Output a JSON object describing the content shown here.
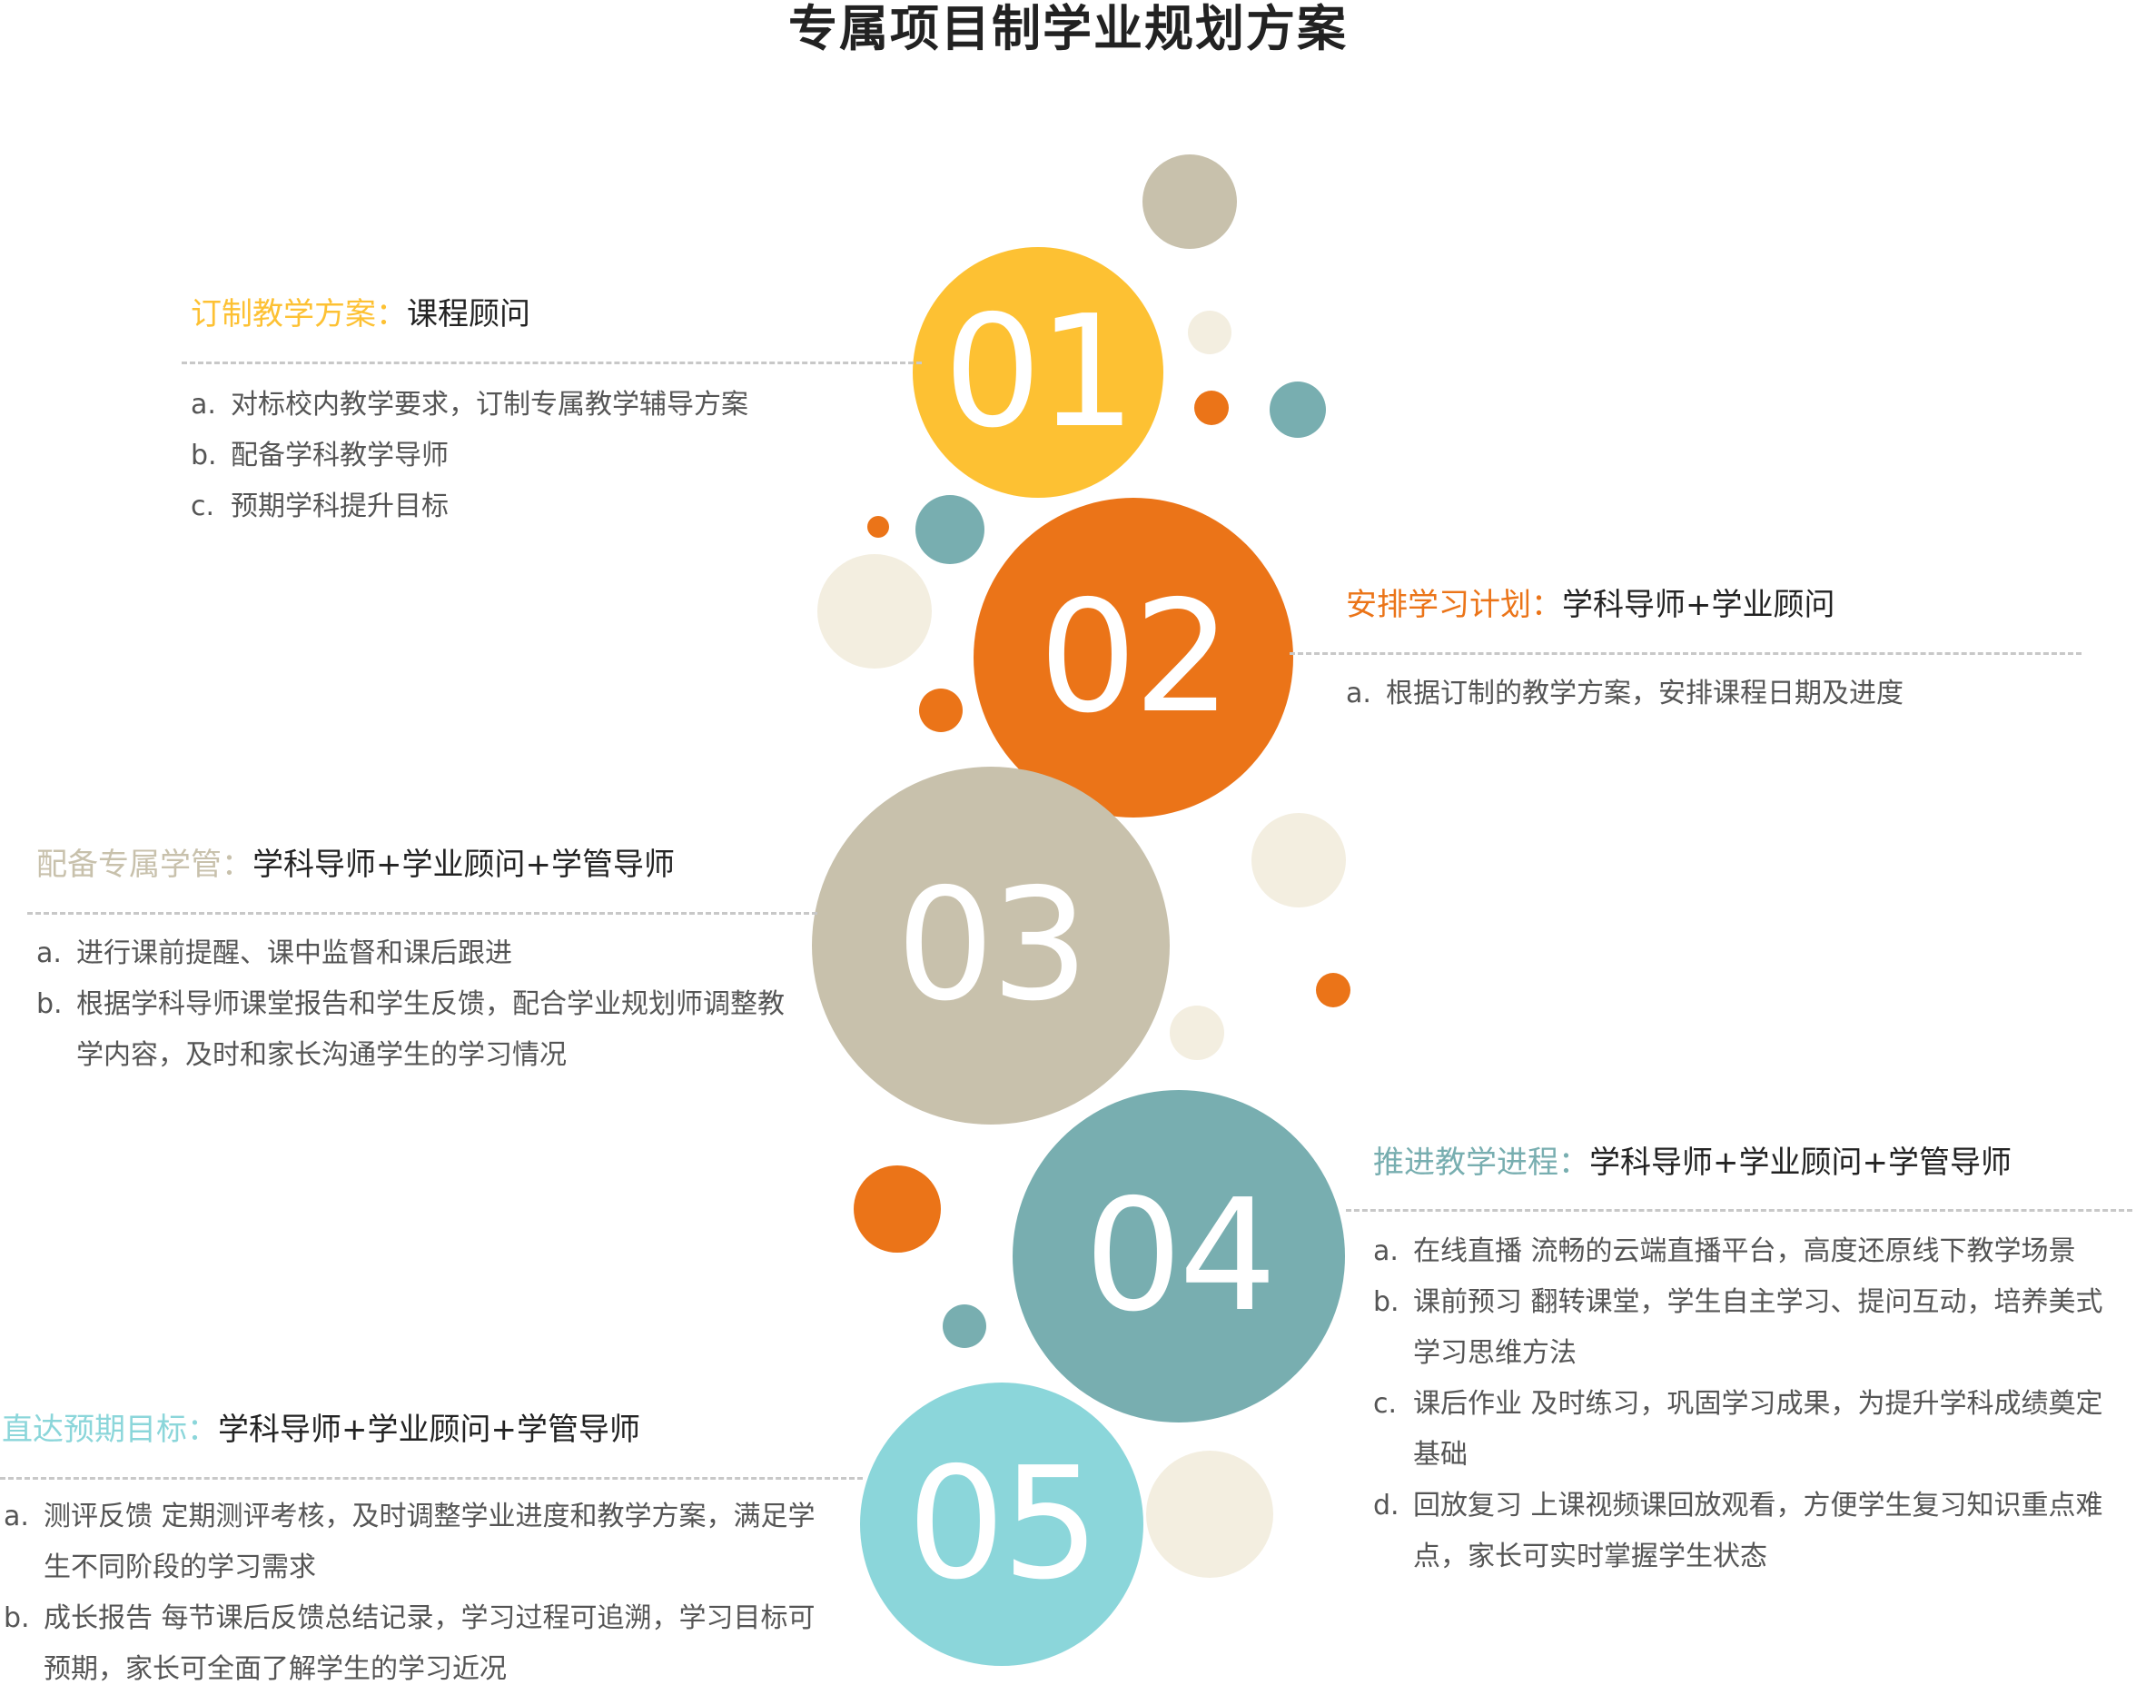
{
  "title": "专属项目制学业规划方案",
  "colors": {
    "yellow": "#FDC133",
    "orange": "#EB7418",
    "beige": "#C8C1AC",
    "teal": "#78AEB0",
    "cyan": "#8BD6DA",
    "cream": "#F3EEE0"
  },
  "steps": [
    {
      "number": "01",
      "key": "订制教学方案：",
      "value": "课程顾问",
      "items": [
        {
          "mark": "a.",
          "text": "对标校内教学要求，订制专属教学辅导方案"
        },
        {
          "mark": "b.",
          "text": "配备学科教学导师"
        },
        {
          "mark": "c.",
          "text": "预期学科提升目标"
        }
      ]
    },
    {
      "number": "02",
      "key": "安排学习计划：",
      "value": "学科导师+学业顾问",
      "items": [
        {
          "mark": "a.",
          "text": "根据订制的教学方案，安排课程日期及进度"
        }
      ]
    },
    {
      "number": "03",
      "key": "配备专属学管：",
      "value": "学科导师+学业顾问+学管导师",
      "items": [
        {
          "mark": "a.",
          "text": "进行课前提醒、课中监督和课后跟进"
        },
        {
          "mark": "b.",
          "text": "根据学科导师课堂报告和学生反馈，配合学业规划师调整教学内容，及时和家长沟通学生的学习情况"
        }
      ]
    },
    {
      "number": "04",
      "key": "推进教学进程：",
      "value": "学科导师+学业顾问+学管导师",
      "items": [
        {
          "mark": "a.",
          "text": "在线直播 流畅的云端直播平台，高度还原线下教学场景"
        },
        {
          "mark": "b.",
          "text": "课前预习 翻转课堂，学生自主学习、提问互动，培养美式学习思维方法"
        },
        {
          "mark": "c.",
          "text": "课后作业 及时练习，巩固学习成果，为提升学科成绩奠定基础"
        },
        {
          "mark": "d.",
          "text": "回放复习 上课视频课回放观看，方便学生复习知识重点难点，家长可实时掌握学生状态"
        }
      ]
    },
    {
      "number": "05",
      "key": "直达预期目标：",
      "value": "学科导师+学业顾问+学管导师",
      "items": [
        {
          "mark": "a.",
          "text": "测评反馈 定期测评考核，及时调整学业进度和教学方案，满足学生不同阶段的学习需求"
        },
        {
          "mark": "b.",
          "text": "成长报告 每节课后反馈总结记录，学习过程可追溯，学习目标可预期，家长可全面了解学生的学习近况"
        }
      ]
    }
  ]
}
